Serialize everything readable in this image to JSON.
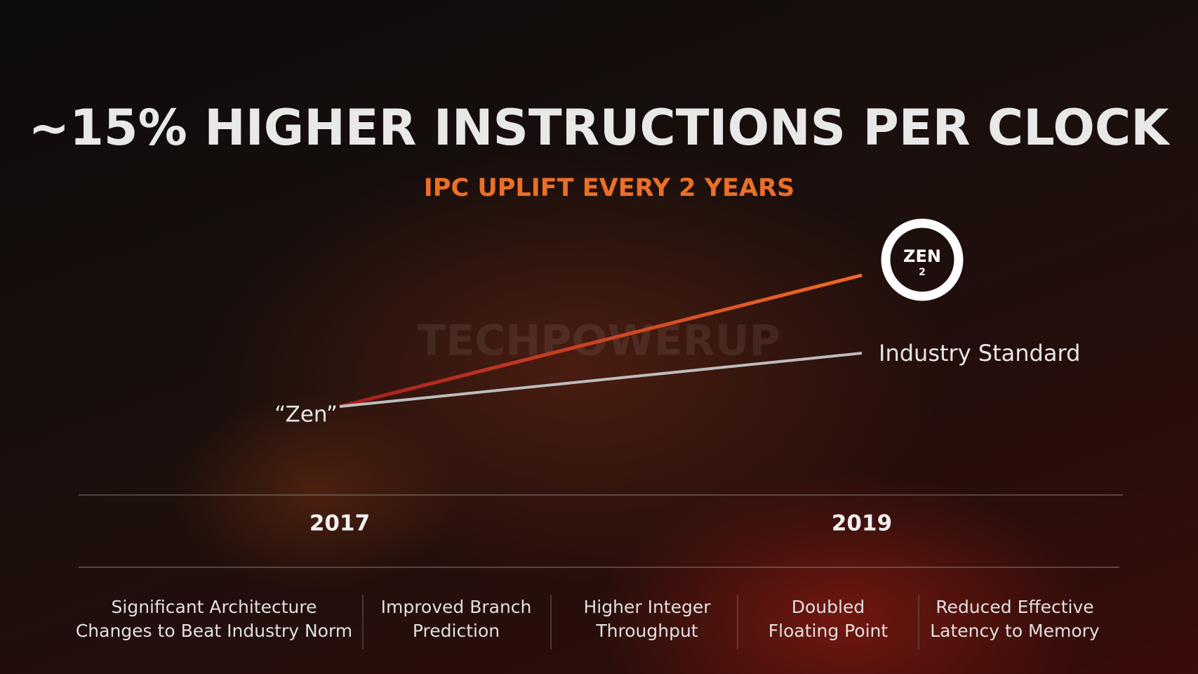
{
  "header": {
    "title": "~15% HIGHER INSTRUCTIONS PER CLOCK",
    "subtitle": "IPC UPLIFT EVERY 2 YEARS"
  },
  "watermark": "TECHPOWERUP",
  "logo": {
    "word": "ZEN",
    "number": "2"
  },
  "diagram": {
    "start_label": "“Zen”",
    "industry_label": "Industry Standard",
    "years": [
      "2017",
      "2019"
    ]
  },
  "features": [
    [
      "Significant Architecture",
      "Changes to Beat Industry Norm"
    ],
    [
      "Improved Branch",
      "Prediction"
    ],
    [
      "Higher Integer",
      "Throughput"
    ],
    [
      "Doubled",
      "Floating Point"
    ],
    [
      "Reduced Effective",
      "Latency to Memory"
    ]
  ]
}
